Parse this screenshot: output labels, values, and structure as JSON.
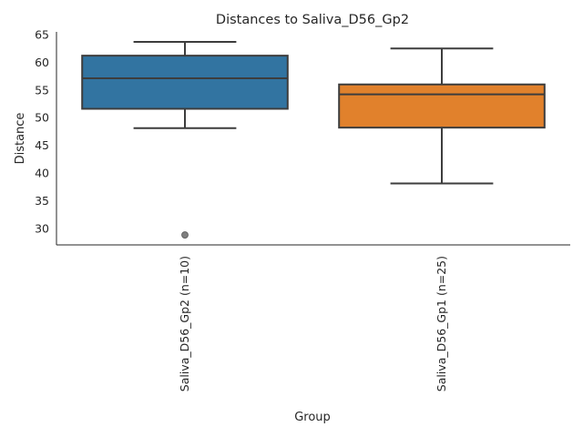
{
  "chart_data": {
    "type": "box",
    "title": "Distances to Saliva_D56_Gp2",
    "xlabel": "Group",
    "ylabel": "Distance",
    "ylim": [
      27,
      65.5
    ],
    "yticks": [
      30,
      35,
      40,
      45,
      50,
      55,
      60,
      65
    ],
    "grid": false,
    "categories": [
      "Saliva_D56_Gp2 (n=10)",
      "Saliva_D56_Gp1 (n=25)"
    ],
    "boxes": [
      {
        "category": "Saliva_D56_Gp2 (n=10)",
        "whisker_low": 48.1,
        "q1": 51.6,
        "median": 57.1,
        "q3": 61.2,
        "whisker_high": 63.7,
        "outliers": [
          28.8
        ],
        "color": "#3274a1"
      },
      {
        "category": "Saliva_D56_Gp1 (n=25)",
        "whisker_low": 38.1,
        "q1": 48.2,
        "median": 54.2,
        "q3": 56.0,
        "whisker_high": 62.5,
        "outliers": [],
        "color": "#e1812c"
      }
    ]
  }
}
